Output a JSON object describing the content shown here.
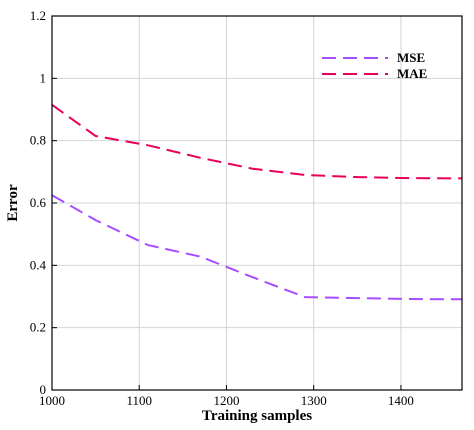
{
  "chart_data": {
    "type": "line",
    "xlabel": "Training samples",
    "ylabel": "Error",
    "xlim": [
      1000,
      1470
    ],
    "ylim": [
      0,
      1.2
    ],
    "xticks": [
      "1000",
      "1100",
      "1200",
      "1300",
      "1400"
    ],
    "yticks": [
      "0",
      "0.2",
      "0.4",
      "0.6",
      "0.8",
      "1",
      "1.2"
    ],
    "grid": true,
    "legend_position": "top-right",
    "series": [
      {
        "name": "MSE",
        "color": "#a64dff",
        "x": [
          1000,
          1050,
          1110,
          1170,
          1230,
          1290,
          1350,
          1410,
          1470
        ],
        "y": [
          0.625,
          0.545,
          0.465,
          0.428,
          0.362,
          0.298,
          0.295,
          0.292,
          0.291
        ]
      },
      {
        "name": "MAE",
        "color": "#e8005a",
        "x": [
          1000,
          1050,
          1110,
          1170,
          1230,
          1290,
          1350,
          1410,
          1470
        ],
        "y": [
          0.915,
          0.815,
          0.785,
          0.745,
          0.71,
          0.69,
          0.683,
          0.68,
          0.679
        ]
      }
    ]
  }
}
